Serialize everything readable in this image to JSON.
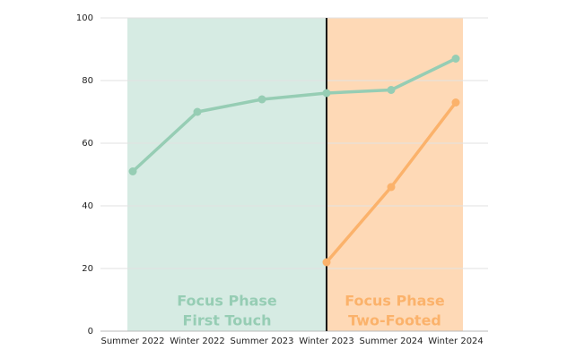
{
  "chart_data": {
    "type": "line",
    "categories": [
      "Summer 2022",
      "Winter 2022",
      "Summer 2023",
      "Winter 2023",
      "Summer 2024",
      "Winter 2024"
    ],
    "series": [
      {
        "color": "#96cdb4",
        "values": [
          51,
          70,
          74,
          76,
          77,
          87
        ]
      },
      {
        "color": "#fbb26b",
        "values": [
          null,
          null,
          null,
          22,
          46,
          73
        ]
      }
    ],
    "ylim": [
      0,
      100
    ],
    "yticks": [
      0,
      20,
      40,
      60,
      80,
      100
    ],
    "grid": true,
    "divider": "Winter 2023",
    "regions": [
      {
        "span": [
          "Summer 2022",
          "Winter 2023"
        ],
        "color": "#d6ebe3",
        "text_color": "#96cdb4",
        "label": [
          "Focus Phase",
          "First Touch"
        ]
      },
      {
        "span": [
          "Winter 2023",
          "Winter 2024"
        ],
        "color": "#fed9b6",
        "text_color": "#fbb26b",
        "label": [
          "Focus Phase",
          "Two-Footed"
        ]
      }
    ]
  }
}
